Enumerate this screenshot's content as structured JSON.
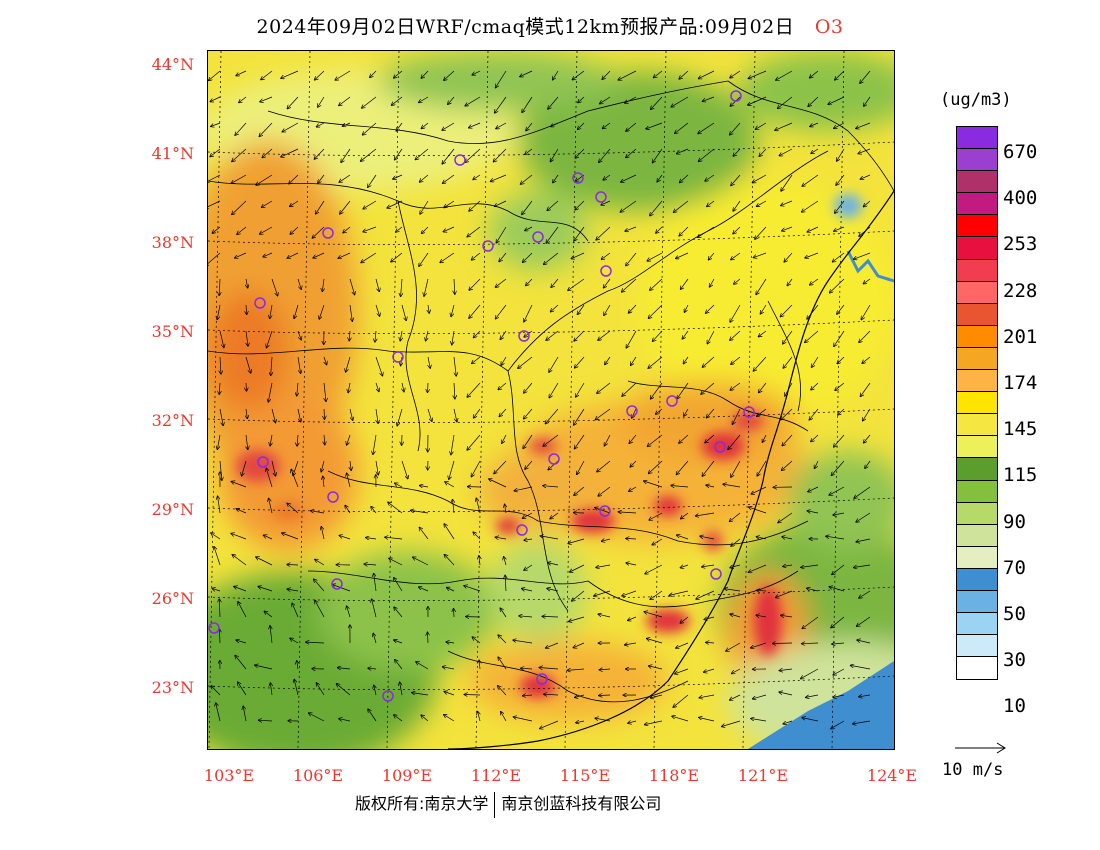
{
  "title": {
    "text": "2024年09月02日WRF/cmaq模式12km预报产品:09月02日",
    "species": "O3"
  },
  "map": {
    "lat_labels": [
      "44°N",
      "41°N",
      "38°N",
      "35°N",
      "32°N",
      "29°N",
      "26°N",
      "23°N"
    ],
    "lon_labels": [
      "103°E",
      "106°E",
      "109°E",
      "112°E",
      "115°E",
      "118°E",
      "121°E",
      "124°E"
    ],
    "marker_color": "#8a2be2"
  },
  "legend": {
    "unit": "(ug/m3)",
    "labels": [
      "670",
      "400",
      "253",
      "228",
      "201",
      "174",
      "145",
      "115",
      "90",
      "70",
      "50",
      "30",
      "10"
    ],
    "colors": [
      "#8a2be2",
      "#9b3fd0",
      "#b0306a",
      "#c21a80",
      "#ff0000",
      "#e8103e",
      "#f23d50",
      "#ff6666",
      "#e85530",
      "#ff8c00",
      "#f5a623",
      "#ffb347",
      "#ffe400",
      "#f5e642",
      "#ecf05a",
      "#5c9e2e",
      "#84bf3e",
      "#b6d96a",
      "#cfe39a",
      "#e4eec0",
      "#3f8fd0",
      "#6ab2e4",
      "#9bd3f2",
      "#cdeaf8",
      "#ffffff"
    ],
    "vector_ref_label": "10 m/s"
  },
  "footer": {
    "left": "版权所有:南京大学",
    "right": "南京创蓝科技有限公司"
  }
}
